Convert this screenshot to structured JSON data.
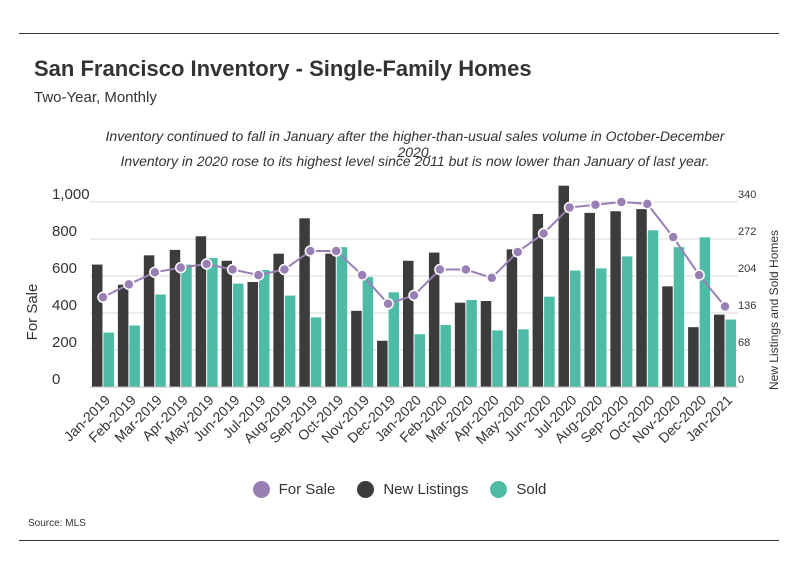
{
  "title": "San Francisco Inventory - Single-Family Homes",
  "subtitle": "Two-Year, Monthly",
  "notes": [
    "Inventory continued to fall in January after the higher-than-usual sales volume in October-December 2020.",
    "Inventory in 2020 rose to its highest level since 2011 but is now lower than January of last year."
  ],
  "source": "Source:  MLS",
  "colors": {
    "for_sale": "#9a7fb5",
    "new_listings": "#3c3c3c",
    "sold": "#4dbba6"
  },
  "chart_data": {
    "type": "bar",
    "categories": [
      "Jan-2019",
      "Feb-2019",
      "Mar-2019",
      "Apr-2019",
      "May-2019",
      "Jun-2019",
      "Jul-2019",
      "Aug-2019",
      "Sep-2019",
      "Oct-2019",
      "Nov-2019",
      "Dec-2019",
      "Jan-2020",
      "Feb-2020",
      "Mar-2020",
      "Apr-2020",
      "May-2020",
      "Jun-2020",
      "Jul-2020",
      "Aug-2020",
      "Sep-2020",
      "Oct-2020",
      "Nov-2020",
      "Dec-2020",
      "Jan-2021"
    ],
    "ylabel": "For Sale",
    "y2label": "New Listings and Sold Homes",
    "ylim": [
      0,
      1000
    ],
    "y2lim": [
      0,
      340
    ],
    "yticks": [
      "0",
      "200",
      "400",
      "600",
      "800",
      "1,000"
    ],
    "y2ticks": [
      "0",
      "68",
      "136",
      "204",
      "272",
      "340"
    ],
    "grid": true,
    "legend_position": "bottom",
    "series": [
      {
        "name": "For Sale",
        "type": "line",
        "axis": "left",
        "values": [
          485,
          555,
          620,
          645,
          665,
          635,
          605,
          635,
          735,
          735,
          605,
          450,
          495,
          635,
          635,
          590,
          730,
          830,
          970,
          985,
          1000,
          990,
          810,
          605,
          435
        ]
      },
      {
        "name": "New Listings",
        "type": "bar",
        "axis": "right",
        "values": [
          225,
          188,
          242,
          252,
          277,
          232,
          193,
          245,
          310,
          245,
          140,
          85,
          232,
          247,
          155,
          158,
          253,
          318,
          370,
          320,
          323,
          327,
          185,
          110,
          133
        ]
      },
      {
        "name": "Sold",
        "type": "bar",
        "axis": "right",
        "values": [
          100,
          113,
          170,
          225,
          237,
          190,
          215,
          168,
          128,
          257,
          202,
          174,
          97,
          114,
          160,
          104,
          106,
          166,
          214,
          218,
          240,
          288,
          257,
          275,
          124
        ]
      }
    ]
  }
}
